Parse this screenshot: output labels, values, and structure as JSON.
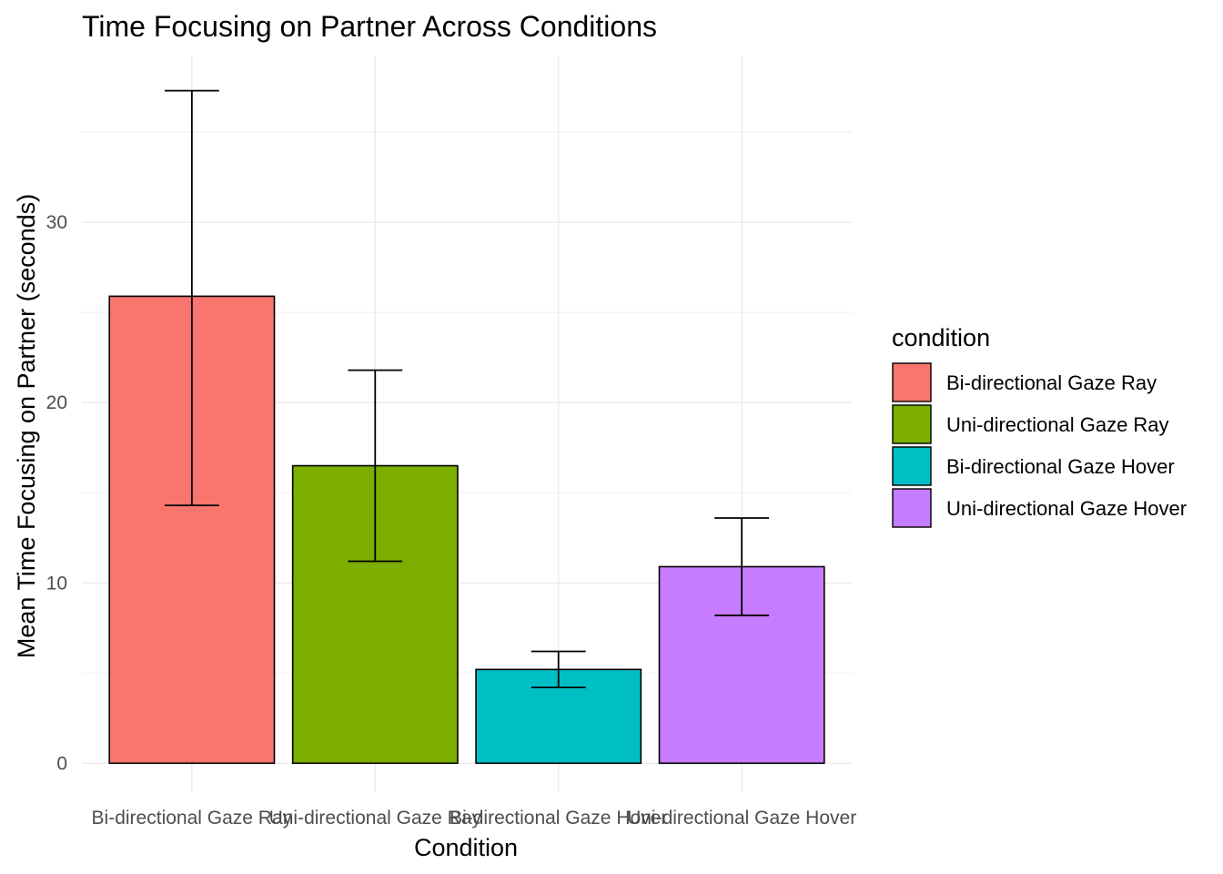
{
  "chart_data": {
    "type": "bar",
    "title": "Time Focusing on Partner Across Conditions",
    "xlabel": "Condition",
    "ylabel": "Mean Time Focusing on Partner (seconds)",
    "categories": [
      "Bi-directional Gaze Ray",
      "Uni-directional Gaze Ray",
      "Bi-directional Gaze Hover",
      "Uni-directional Gaze Hover"
    ],
    "values": [
      25.9,
      16.5,
      5.2,
      10.9
    ],
    "error_low": [
      14.3,
      11.2,
      4.2,
      8.2
    ],
    "error_high": [
      37.3,
      21.8,
      6.2,
      13.6
    ],
    "ylim": [
      -1.6,
      39.2
    ],
    "yticks": [
      0,
      10,
      20,
      30
    ],
    "ytick_labels": [
      "0",
      "10",
      "20",
      "30"
    ],
    "colors": [
      "#F8766D",
      "#7CAE00",
      "#00BFC4",
      "#C77CFF"
    ],
    "grid": true,
    "legend": {
      "title": "condition",
      "placement": "right",
      "entries": [
        "Bi-directional Gaze Ray",
        "Uni-directional Gaze Ray",
        "Bi-directional Gaze Hover",
        "Uni-directional Gaze Hover"
      ]
    }
  }
}
